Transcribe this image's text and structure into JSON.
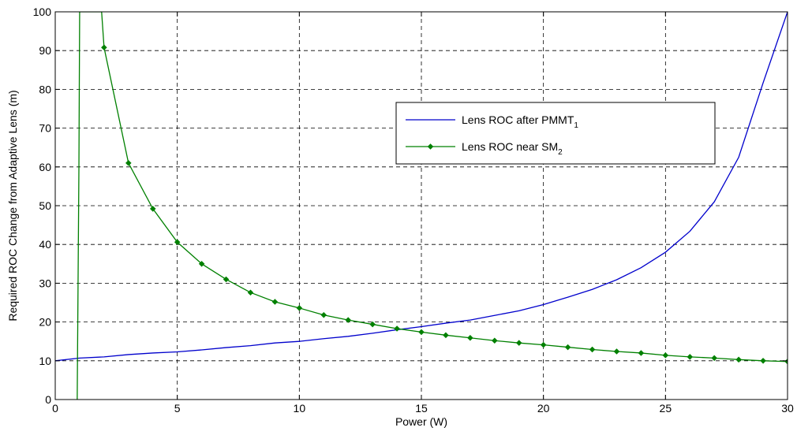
{
  "chart_data": {
    "type": "line",
    "title": "",
    "xlabel": "Power (W)",
    "ylabel": "Required ROC Change from Adaptive Lens (m)",
    "xlim": [
      0,
      30
    ],
    "ylim": [
      0,
      100
    ],
    "xticks": [
      0,
      5,
      10,
      15,
      20,
      25,
      30
    ],
    "yticks": [
      0,
      10,
      20,
      30,
      40,
      50,
      60,
      70,
      80,
      90,
      100
    ],
    "grid": true,
    "legend_position": "upper-right",
    "series": [
      {
        "name": "Lens ROC after PMMT",
        "name_subscript": "1",
        "color": "#0000cc",
        "marker": "none",
        "points": [
          [
            0,
            10.0
          ],
          [
            1,
            10.7
          ],
          [
            2,
            11.0
          ],
          [
            3,
            11.6
          ],
          [
            4,
            12.0
          ],
          [
            5,
            12.3
          ],
          [
            6,
            12.8
          ],
          [
            7,
            13.4
          ],
          [
            8,
            13.9
          ],
          [
            9,
            14.6
          ],
          [
            10,
            15.0
          ],
          [
            11,
            15.7
          ],
          [
            12,
            16.3
          ],
          [
            13,
            17.1
          ],
          [
            14,
            18.0
          ],
          [
            15,
            18.8
          ],
          [
            16,
            19.7
          ],
          [
            17,
            20.5
          ],
          [
            18,
            21.7
          ],
          [
            19,
            22.9
          ],
          [
            20,
            24.5
          ],
          [
            21,
            26.4
          ],
          [
            22,
            28.4
          ],
          [
            23,
            30.9
          ],
          [
            24,
            34.0
          ],
          [
            25,
            38.0
          ],
          [
            26,
            43.4
          ],
          [
            27,
            51.0
          ],
          [
            28,
            62.5
          ],
          [
            29,
            81.7
          ],
          [
            30,
            100.0
          ]
        ]
      },
      {
        "name": "Lens ROC near SM",
        "name_subscript": "2",
        "color": "#008000",
        "marker": "diamond",
        "markers_from": 2,
        "points": [
          [
            0.9,
            0
          ],
          [
            0.97,
            60
          ],
          [
            1.0,
            100
          ],
          [
            1.9,
            100
          ],
          [
            2,
            90.8
          ],
          [
            3,
            61.0
          ],
          [
            4,
            49.2
          ],
          [
            5,
            40.6
          ],
          [
            6,
            35.0
          ],
          [
            7,
            31.0
          ],
          [
            8,
            27.6
          ],
          [
            9,
            25.2
          ],
          [
            10,
            23.6
          ],
          [
            11,
            21.8
          ],
          [
            12,
            20.5
          ],
          [
            13,
            19.4
          ],
          [
            14,
            18.3
          ],
          [
            15,
            17.4
          ],
          [
            16,
            16.6
          ],
          [
            17,
            15.9
          ],
          [
            18,
            15.2
          ],
          [
            19,
            14.6
          ],
          [
            20,
            14.1
          ],
          [
            21,
            13.5
          ],
          [
            22,
            12.9
          ],
          [
            23,
            12.4
          ],
          [
            24,
            12.0
          ],
          [
            25,
            11.4
          ],
          [
            26,
            11.0
          ],
          [
            27,
            10.7
          ],
          [
            28,
            10.3
          ],
          [
            29,
            10.0
          ],
          [
            30,
            9.8
          ]
        ]
      }
    ]
  }
}
